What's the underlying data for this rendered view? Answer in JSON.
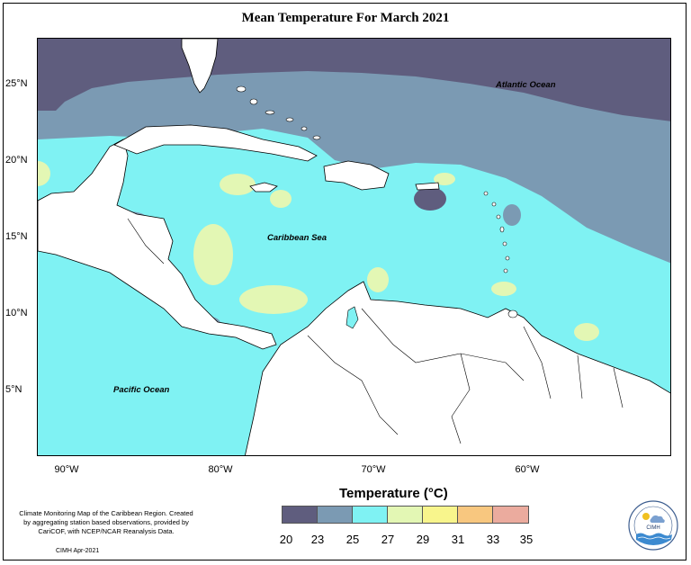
{
  "title": "Mean Temperature For March 2021",
  "colors": {
    "t20_23": "#5f5d7e",
    "t23_25": "#7b9ab3",
    "t25_27": "#7ff2f3",
    "t27_29": "#e3f7b4",
    "t29_31": "#f8f58c",
    "t31_33": "#f8c77f",
    "t33_35": "#ebab9e",
    "land": "#ffffff"
  },
  "lat_labels": [
    "25°N",
    "20°N",
    "15°N",
    "10°N",
    "5°N"
  ],
  "lon_labels": [
    "90°W",
    "80°W",
    "70°W",
    "60°W"
  ],
  "map_labels": {
    "atlantic": "Atlantic Ocean",
    "caribbean": "Caribbean Sea",
    "pacific": "Pacific Ocean"
  },
  "legend": {
    "title": "Temperature (°C)",
    "ticks": [
      "20",
      "23",
      "25",
      "27",
      "29",
      "31",
      "33",
      "35"
    ]
  },
  "credits": "Climate Monitoring Map of the Caribbean Region. Created by aggregating station based observations, provided by CariCOF, with NCEP/NCAR Reanalysis Data.",
  "stamp": "CIMH Apr-2021",
  "logo_text": "CIMH"
}
